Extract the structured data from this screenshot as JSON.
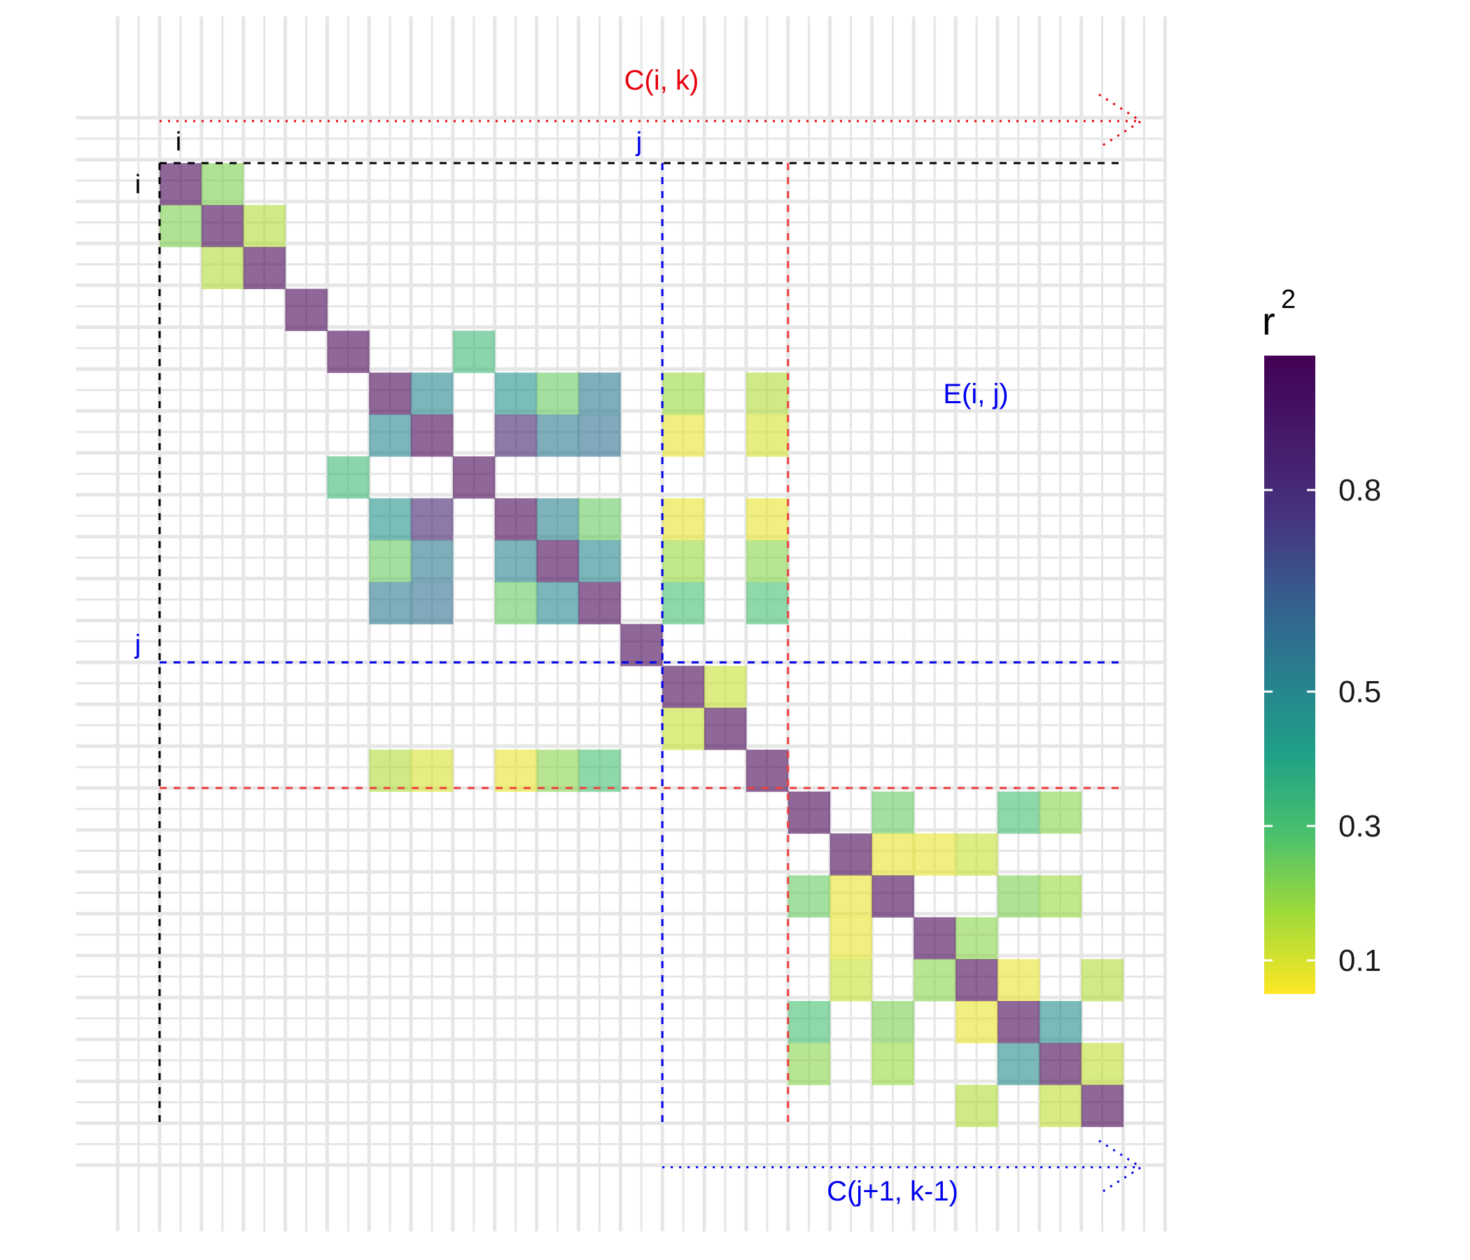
{
  "chart_data": {
    "type": "heatmap",
    "n": 23,
    "palette": "viridis",
    "cell_opacity": 0.6,
    "colorbar": {
      "title": "r",
      "title_superscript": "2",
      "ticks": [
        {
          "value": 0.8,
          "label": "0.8"
        },
        {
          "value": 0.5,
          "label": "0.5"
        },
        {
          "value": 0.3,
          "label": "0.3"
        },
        {
          "value": 0.1,
          "label": "0.1"
        }
      ],
      "range": [
        0.05,
        1.0
      ]
    },
    "cells": [
      [
        1,
        1,
        1.0
      ],
      [
        1,
        2,
        0.22
      ],
      [
        2,
        1,
        0.22
      ],
      [
        2,
        2,
        1.0
      ],
      [
        2,
        3,
        0.15
      ],
      [
        3,
        2,
        0.15
      ],
      [
        3,
        3,
        1.0
      ],
      [
        4,
        4,
        1.0
      ],
      [
        5,
        5,
        1.0
      ],
      [
        5,
        8,
        0.32
      ],
      [
        8,
        5,
        0.32
      ],
      [
        6,
        6,
        1.0
      ],
      [
        6,
        7,
        0.5
      ],
      [
        7,
        6,
        0.5
      ],
      [
        6,
        9,
        0.46
      ],
      [
        9,
        6,
        0.46
      ],
      [
        6,
        10,
        0.25
      ],
      [
        10,
        6,
        0.25
      ],
      [
        6,
        11,
        0.55
      ],
      [
        11,
        6,
        0.55
      ],
      [
        7,
        7,
        1.0
      ],
      [
        7,
        9,
        0.85
      ],
      [
        9,
        7,
        0.85
      ],
      [
        7,
        10,
        0.55
      ],
      [
        10,
        7,
        0.55
      ],
      [
        7,
        11,
        0.58
      ],
      [
        11,
        7,
        0.58
      ],
      [
        8,
        8,
        1.0
      ],
      [
        9,
        9,
        1.0
      ],
      [
        9,
        10,
        0.52
      ],
      [
        10,
        9,
        0.52
      ],
      [
        9,
        11,
        0.25
      ],
      [
        11,
        9,
        0.25
      ],
      [
        10,
        10,
        1.0
      ],
      [
        10,
        11,
        0.5
      ],
      [
        11,
        10,
        0.5
      ],
      [
        11,
        11,
        1.0
      ],
      [
        12,
        12,
        1.0
      ],
      [
        6,
        15,
        0.15
      ],
      [
        15,
        6,
        0.15
      ],
      [
        7,
        15,
        0.1
      ],
      [
        15,
        7,
        0.1
      ],
      [
        9,
        15,
        0.08
      ],
      [
        15,
        9,
        0.08
      ],
      [
        10,
        15,
        0.2
      ],
      [
        15,
        10,
        0.2
      ],
      [
        11,
        15,
        0.3
      ],
      [
        15,
        11,
        0.3
      ],
      [
        6,
        13,
        0.18
      ],
      [
        7,
        13,
        0.08
      ],
      [
        9,
        13,
        0.08
      ],
      [
        10,
        13,
        0.18
      ],
      [
        11,
        13,
        0.3
      ],
      [
        13,
        13,
        1.0
      ],
      [
        13,
        14,
        0.12
      ],
      [
        14,
        13,
        0.12
      ],
      [
        14,
        14,
        1.0
      ],
      [
        15,
        15,
        1.0
      ],
      [
        16,
        16,
        1.0
      ],
      [
        16,
        18,
        0.25
      ],
      [
        18,
        16,
        0.25
      ],
      [
        16,
        21,
        0.3
      ],
      [
        21,
        16,
        0.3
      ],
      [
        16,
        22,
        0.2
      ],
      [
        22,
        16,
        0.2
      ],
      [
        17,
        17,
        1.0
      ],
      [
        17,
        18,
        0.08
      ],
      [
        18,
        17,
        0.08
      ],
      [
        17,
        19,
        0.08
      ],
      [
        19,
        17,
        0.08
      ],
      [
        17,
        20,
        0.12
      ],
      [
        20,
        17,
        0.12
      ],
      [
        18,
        18,
        1.0
      ],
      [
        18,
        21,
        0.22
      ],
      [
        21,
        18,
        0.22
      ],
      [
        18,
        22,
        0.18
      ],
      [
        22,
        18,
        0.18
      ],
      [
        19,
        19,
        1.0
      ],
      [
        19,
        20,
        0.2
      ],
      [
        20,
        19,
        0.2
      ],
      [
        20,
        20,
        1.0
      ],
      [
        20,
        21,
        0.08
      ],
      [
        21,
        20,
        0.08
      ],
      [
        20,
        23,
        0.15
      ],
      [
        23,
        20,
        0.15
      ],
      [
        21,
        21,
        1.0
      ],
      [
        21,
        22,
        0.48
      ],
      [
        22,
        21,
        0.48
      ],
      [
        22,
        22,
        1.0
      ],
      [
        22,
        23,
        0.13
      ],
      [
        23,
        22,
        0.13
      ],
      [
        23,
        23,
        1.0
      ]
    ],
    "annotations": {
      "label_i_top": "i",
      "label_i_left": "i",
      "label_j_top": "j",
      "label_j_left": "j",
      "label_cik": "C(i, k)",
      "label_eij": "E(i, j)",
      "label_cj1k1": "C(j+1, k-1)"
    },
    "colors": {
      "red": "#e8000d",
      "red_dashed": "#f04040",
      "blue": "#0000ee",
      "black": "#000000",
      "grid": "#e6e6e6"
    }
  }
}
